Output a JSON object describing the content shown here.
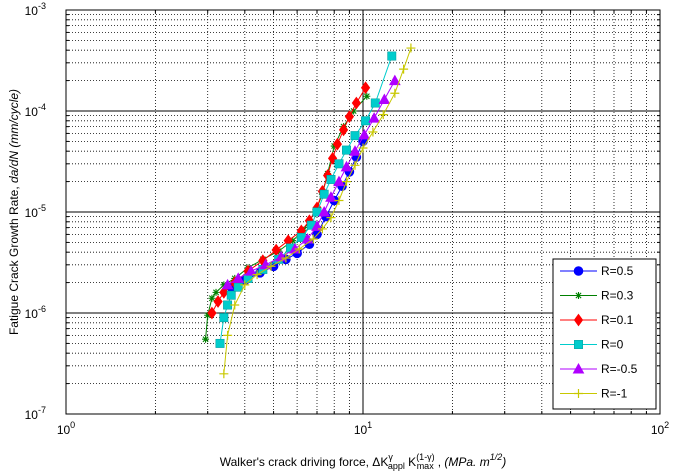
{
  "chart_data": {
    "type": "scatter",
    "xscale": "log",
    "yscale": "log",
    "xlim": [
      1,
      100
    ],
    "ylim": [
      1e-07,
      0.001
    ],
    "grid": true,
    "legend_position": "bottom-right",
    "xlabel": {
      "prefix": "Walker's crack driving force, ΔK",
      "sup1": "γ",
      "sub1": "appl",
      "mid": " K",
      "sup2": "(1-γ)",
      "sub2": "max",
      "comma": ", ",
      "units_open": "(MPa. m",
      "units_sup": "1/2",
      "units_close": ")"
    },
    "ylabel": {
      "prefix": "Fatigue Crack Growth Rate, ",
      "italic": "da/dN (mm/cycle)"
    },
    "x_ticks": [
      {
        "value": 1,
        "base": "10",
        "exp": "0"
      },
      {
        "value": 10,
        "base": "10",
        "exp": "1"
      },
      {
        "value": 100,
        "base": "10",
        "exp": "2"
      }
    ],
    "y_ticks": [
      {
        "value": 1e-07,
        "base": "10",
        "exp": "-7"
      },
      {
        "value": 1e-06,
        "base": "10",
        "exp": "-6"
      },
      {
        "value": 1e-05,
        "base": "10",
        "exp": "-5"
      },
      {
        "value": 0.0001,
        "base": "10",
        "exp": "-4"
      },
      {
        "value": 0.001,
        "base": "10",
        "exp": "-3"
      }
    ],
    "series": [
      {
        "name": "R=0.5",
        "color": "#0000ff",
        "marker": "circle",
        "x": [
          3.6,
          4.0,
          4.5,
          5.0,
          5.5,
          6.0,
          6.6,
          7.0,
          7.5,
          8.0,
          8.5,
          9.0,
          9.5,
          10.0
        ],
        "y": [
          1.8e-06,
          2.1e-06,
          2.5e-06,
          2.9e-06,
          3.4e-06,
          3.9e-06,
          4.8e-06,
          6e-06,
          9e-06,
          1.3e-05,
          1.8e-05,
          2.5e-05,
          3.5e-05,
          5e-05
        ]
      },
      {
        "name": "R=0.3",
        "color": "#008000",
        "marker": "star",
        "x": [
          2.95,
          3.0,
          3.1,
          3.2,
          3.4,
          3.7,
          4.1,
          4.6,
          5.2,
          5.8,
          6.3,
          6.9,
          7.3,
          7.6,
          8.0,
          8.6,
          9.3,
          10.3
        ],
        "y": [
          5.5e-07,
          9.5e-07,
          1.4e-06,
          1.6e-06,
          1.9e-06,
          2.2e-06,
          2.8e-06,
          3.4e-06,
          4.1e-06,
          5.2e-06,
          6.6e-06,
          1e-05,
          1.5e-05,
          2.4e-05,
          4.5e-05,
          7e-05,
          0.0001,
          0.00014
        ]
      },
      {
        "name": "R=0.1",
        "color": "#ff0000",
        "marker": "diamond",
        "x": [
          3.1,
          3.25,
          3.4,
          3.7,
          4.1,
          4.6,
          5.1,
          5.6,
          6.2,
          6.6,
          7.0,
          7.3,
          7.6,
          7.9,
          8.2,
          8.6,
          9.0,
          9.5,
          10.2
        ],
        "y": [
          1e-06,
          1.3e-06,
          1.6e-06,
          2e-06,
          2.6e-06,
          3.3e-06,
          4.2e-06,
          5.2e-06,
          6.5e-06,
          8.2e-06,
          1.1e-05,
          1.6e-05,
          2.3e-05,
          3.4e-05,
          4.7e-05,
          6.5e-05,
          8.8e-05,
          0.00012,
          0.00017
        ]
      },
      {
        "name": "R=0",
        "color": "#00cccc",
        "marker": "square",
        "x": [
          3.3,
          3.4,
          3.5,
          3.6,
          3.8,
          4.1,
          4.6,
          5.2,
          5.7,
          6.2,
          6.7,
          7.0,
          7.4,
          7.8,
          8.3,
          8.8,
          9.4,
          10.2,
          11.0,
          12.5
        ],
        "y": [
          5e-07,
          9e-07,
          1.2e-06,
          1.5e-06,
          1.8e-06,
          2.2e-06,
          2.7e-06,
          3.4e-06,
          4.4e-06,
          5.6e-06,
          7.4e-06,
          1e-05,
          1.5e-05,
          2.1e-05,
          3e-05,
          4.1e-05,
          5.7e-05,
          8e-05,
          0.00012,
          0.00035
        ]
      },
      {
        "name": "R=-0.5",
        "color": "#b000ff",
        "marker": "triangle",
        "x": [
          3.5,
          3.8,
          4.2,
          4.7,
          5.3,
          5.9,
          6.5,
          7.0,
          7.4,
          7.8,
          8.3,
          8.8,
          9.4,
          10.1,
          10.9,
          11.8,
          12.8
        ],
        "y": [
          1.9e-06,
          2.2e-06,
          2.6e-06,
          3e-06,
          3.6e-06,
          4.3e-06,
          5.4e-06,
          7.2e-06,
          1e-05,
          1.4e-05,
          2e-05,
          2.8e-05,
          4e-05,
          5.8e-05,
          8.5e-05,
          0.00013,
          0.0002
        ]
      },
      {
        "name": "R=-1",
        "color": "#c8c800",
        "marker": "plus",
        "x": [
          3.4,
          3.5,
          3.7,
          4.0,
          4.4,
          4.9,
          5.5,
          6.1,
          6.8,
          7.3,
          7.8,
          8.3,
          8.8,
          9.4,
          10.0,
          10.8,
          11.7,
          12.8,
          13.7,
          14.5
        ],
        "y": [
          2.5e-07,
          6e-07,
          1.2e-06,
          1.9e-06,
          2.4e-06,
          2.9e-06,
          3.5e-06,
          4.3e-06,
          5.4e-06,
          6.8e-06,
          8.8e-06,
          1.3e-05,
          2e-05,
          2.9e-05,
          4.3e-05,
          6.2e-05,
          9.2e-05,
          0.00015,
          0.00026,
          0.00042
        ]
      }
    ]
  }
}
